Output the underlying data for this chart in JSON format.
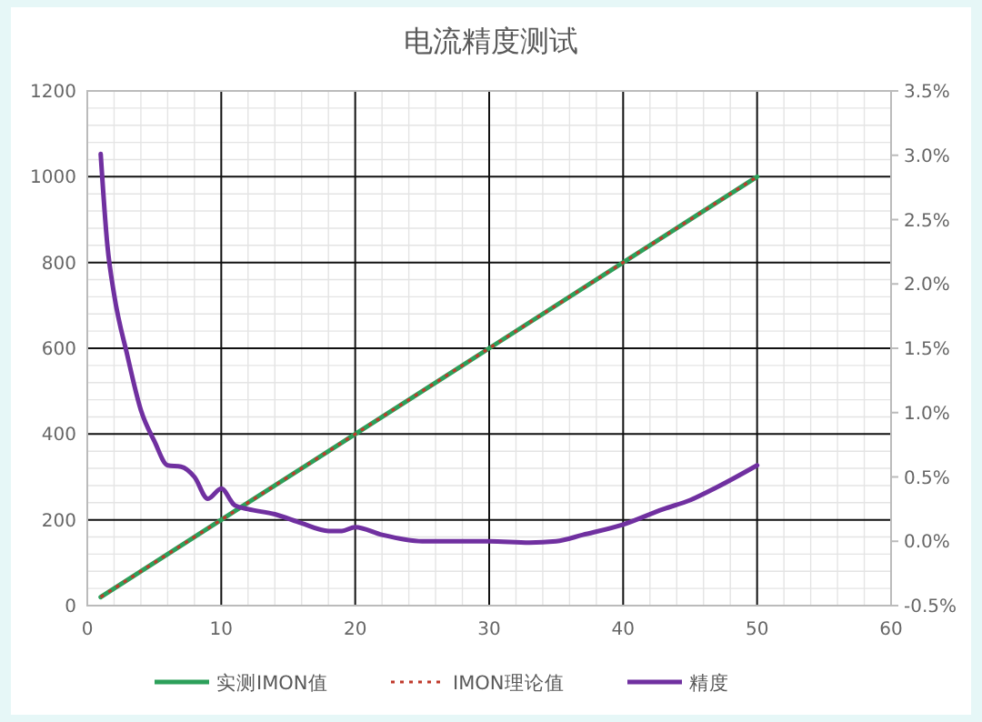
{
  "chart_data": {
    "type": "line",
    "title": "电流精度测试",
    "xlim": [
      0,
      60
    ],
    "xticks": [
      0,
      10,
      20,
      30,
      40,
      50,
      60
    ],
    "ylim": [
      0,
      1200
    ],
    "yticks": [
      0,
      200,
      400,
      600,
      800,
      1000,
      1200
    ],
    "y2lim": [
      -0.5,
      3.5
    ],
    "y2ticks": [
      {
        "value": -0.5,
        "label": "-0.5%"
      },
      {
        "value": 0,
        "label": "0.0%"
      },
      {
        "value": 0.5,
        "label": "0.5%"
      },
      {
        "value": 1,
        "label": "1.0%"
      },
      {
        "value": 1.5,
        "label": "1.5%"
      },
      {
        "value": 2,
        "label": "2.0%"
      },
      {
        "value": 2.5,
        "label": "2.5%"
      },
      {
        "value": 3,
        "label": "3.0%"
      },
      {
        "value": 3.5,
        "label": "3.5%"
      }
    ],
    "grid": true,
    "legend": "bottom",
    "series": [
      {
        "name": "实测IMON值",
        "color": "#2ca05a",
        "line_style": "solid",
        "x": [
          1,
          10,
          20,
          30,
          40,
          50
        ],
        "values": [
          20,
          200,
          400,
          600,
          800,
          1000
        ]
      },
      {
        "name": "IMON理论值",
        "color": "#c0392b",
        "line_style": "dotted",
        "x": [
          1,
          10,
          20,
          30,
          40,
          50
        ],
        "values": [
          20,
          200,
          400,
          600,
          800,
          1000
        ]
      },
      {
        "name": "精度",
        "color": "#7030a0",
        "line_style": "solid",
        "axis": "y2",
        "x": [
          1,
          1.5,
          2,
          3,
          4,
          5,
          6,
          7,
          8,
          9,
          10,
          11,
          12,
          14,
          16,
          18,
          19,
          20,
          22,
          25,
          28,
          30,
          33,
          35,
          37,
          40,
          43,
          45,
          47,
          50
        ],
        "values": [
          3.01,
          2.3,
          1.92,
          1.44,
          1.02,
          0.78,
          0.59,
          0.58,
          0.5,
          0.33,
          0.41,
          0.28,
          0.25,
          0.21,
          0.14,
          0.08,
          0.08,
          0.11,
          0.05,
          0.0,
          0.0,
          0.0,
          -0.01,
          0.0,
          0.05,
          0.13,
          0.25,
          0.32,
          0.42,
          0.59
        ]
      }
    ]
  }
}
